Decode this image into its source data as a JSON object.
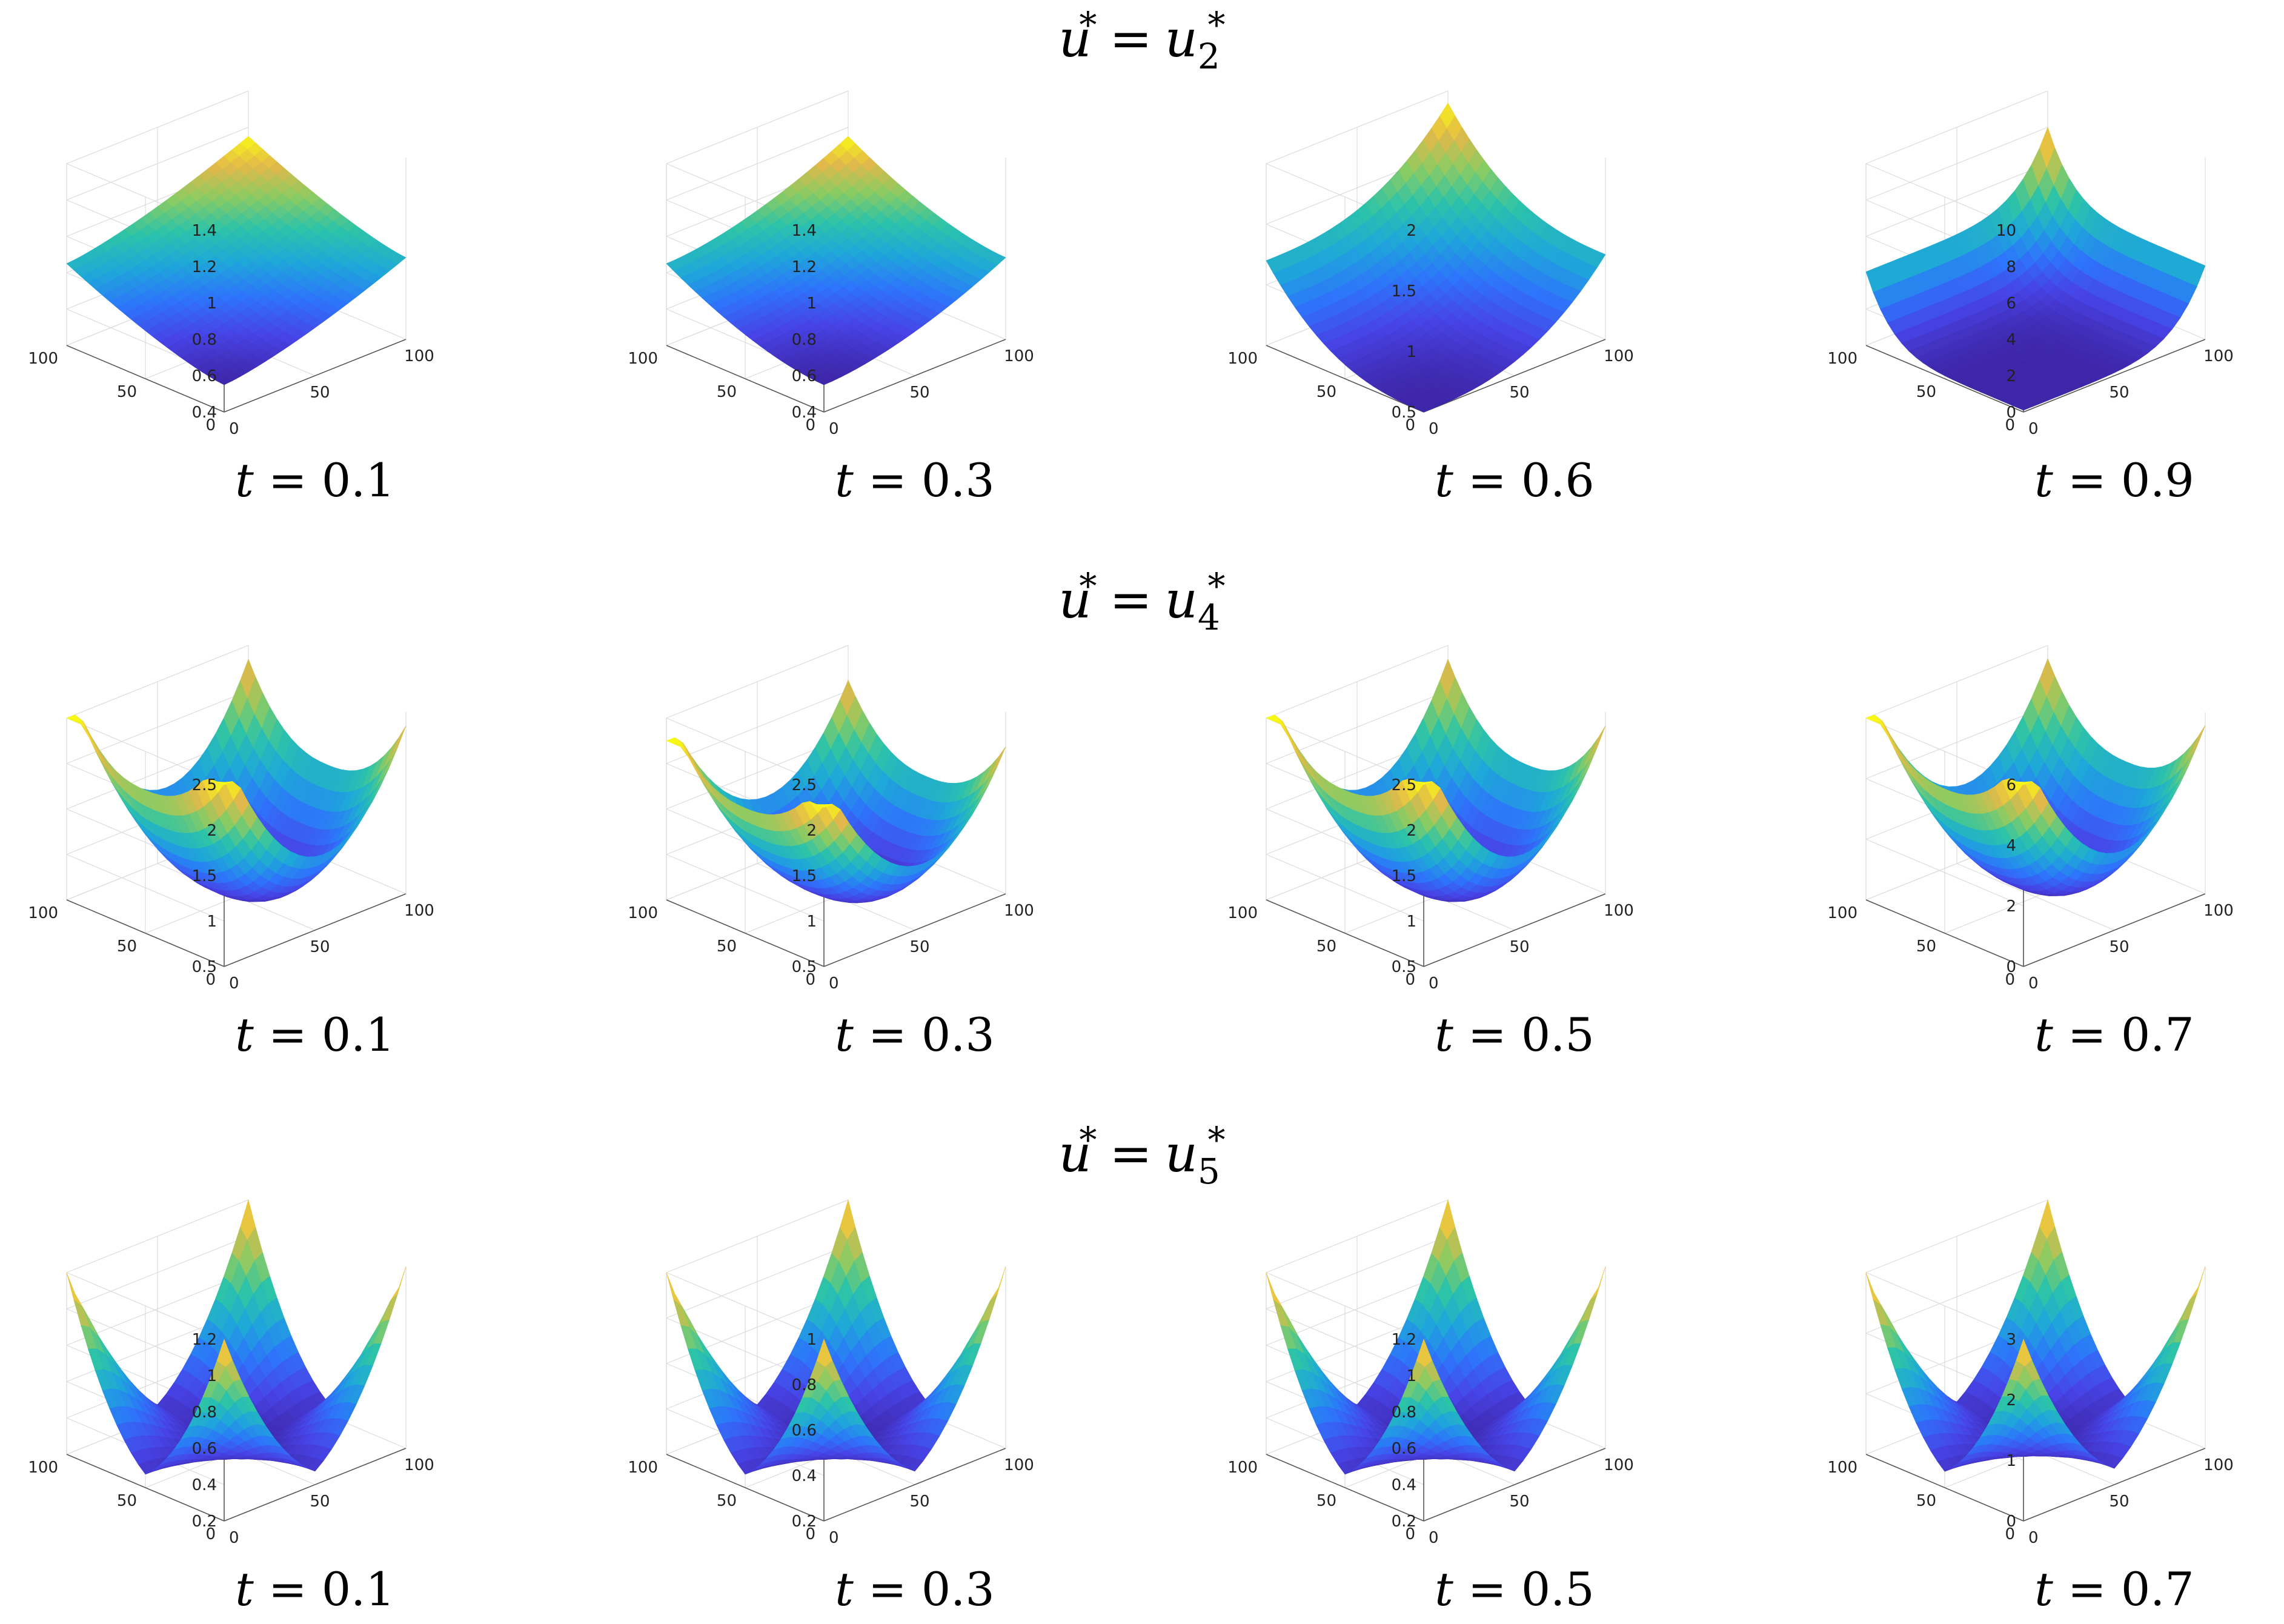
{
  "rows": [
    {
      "title_var": "u",
      "title_star": "*",
      "title_rhs": "u",
      "title_sub": "2",
      "title_sup": "*"
    },
    {
      "title_var": "u",
      "title_star": "*",
      "title_rhs": "u",
      "title_sub": "4",
      "title_sup": "*"
    },
    {
      "title_var": "u",
      "title_star": "*",
      "title_rhs": "u",
      "title_sub": "5",
      "title_sup": "*"
    }
  ],
  "chart_data": [
    {
      "type": "surface",
      "row": 0,
      "caption": "t = 0.1",
      "surface": "u2",
      "x": [
        0,
        100
      ],
      "y": [
        0,
        100
      ],
      "xticks": [
        "0",
        "50",
        "100"
      ],
      "yticks": [
        "0",
        "50",
        "100"
      ],
      "zlim": [
        0.4,
        1.4
      ],
      "zticks": [
        "0.4",
        "0.6",
        "0.8",
        "1",
        "1.2",
        "1.4"
      ],
      "zmin": 0.55,
      "zmax": 1.15
    },
    {
      "type": "surface",
      "row": 0,
      "caption": "t = 0.3",
      "surface": "u2",
      "x": [
        0,
        100
      ],
      "y": [
        0,
        100
      ],
      "xticks": [
        "0",
        "50",
        "100"
      ],
      "yticks": [
        "0",
        "50",
        "100"
      ],
      "zlim": [
        0.4,
        1.4
      ],
      "zticks": [
        "0.4",
        "0.6",
        "0.8",
        "1",
        "1.2",
        "1.4"
      ],
      "zmin": 0.55,
      "zmax": 1.15
    },
    {
      "type": "surface",
      "row": 0,
      "caption": "t = 0.6",
      "surface": "u2",
      "x": [
        0,
        100
      ],
      "y": [
        0,
        100
      ],
      "xticks": [
        "0",
        "50",
        "100"
      ],
      "yticks": [
        "0",
        "50",
        "100"
      ],
      "zlim": [
        0.5,
        2
      ],
      "zticks": [
        "0.5",
        "1",
        "1.5",
        "2"
      ],
      "zmin": 0.5,
      "zmax": 1.9
    },
    {
      "type": "surface",
      "row": 0,
      "caption": "t = 0.9",
      "surface": "u2",
      "x": [
        0,
        100
      ],
      "y": [
        0,
        100
      ],
      "xticks": [
        "0",
        "50",
        "100"
      ],
      "yticks": [
        "0",
        "50",
        "100"
      ],
      "zlim": [
        0,
        10
      ],
      "zticks": [
        "0",
        "2",
        "4",
        "6",
        "8",
        "10"
      ],
      "zmin": 0.1,
      "zmax": 8
    },
    {
      "type": "surface",
      "row": 1,
      "caption": "t = 0.1",
      "surface": "u4",
      "x": [
        0,
        100
      ],
      "y": [
        0,
        100
      ],
      "xticks": [
        "0",
        "50",
        "100"
      ],
      "yticks": [
        "0",
        "50",
        "100"
      ],
      "zlim": [
        0.5,
        2.5
      ],
      "zticks": [
        "0.5",
        "1",
        "1.5",
        "2",
        "2.5"
      ],
      "zmin": 0.5,
      "zmax": 2.5
    },
    {
      "type": "surface",
      "row": 1,
      "caption": "t = 0.3",
      "surface": "u4",
      "x": [
        0,
        100
      ],
      "y": [
        0,
        100
      ],
      "xticks": [
        "0",
        "50",
        "100"
      ],
      "yticks": [
        "0",
        "50",
        "100"
      ],
      "zlim": [
        0.5,
        2.5
      ],
      "zticks": [
        "0.5",
        "1",
        "1.5",
        "2",
        "2.5"
      ],
      "zmin": 0.5,
      "zmax": 2.25
    },
    {
      "type": "surface",
      "row": 1,
      "caption": "t = 0.5",
      "surface": "u4",
      "x": [
        0,
        100
      ],
      "y": [
        0,
        100
      ],
      "xticks": [
        "0",
        "50",
        "100"
      ],
      "yticks": [
        "0",
        "50",
        "100"
      ],
      "zlim": [
        0.5,
        2.5
      ],
      "zticks": [
        "0.5",
        "1",
        "1.5",
        "2",
        "2.5"
      ],
      "zmin": 0.5,
      "zmax": 2.5
    },
    {
      "type": "surface",
      "row": 1,
      "caption": "t = 0.7",
      "surface": "u4",
      "x": [
        0,
        100
      ],
      "y": [
        0,
        100
      ],
      "xticks": [
        "0",
        "50",
        "100"
      ],
      "yticks": [
        "0",
        "50",
        "100"
      ],
      "zlim": [
        0,
        6
      ],
      "zticks": [
        "0",
        "2",
        "4",
        "6"
      ],
      "zmin": 0.2,
      "zmax": 6
    },
    {
      "type": "surface",
      "row": 2,
      "caption": "t = 0.1",
      "surface": "u5",
      "x": [
        0,
        100
      ],
      "y": [
        0,
        100
      ],
      "xticks": [
        "0",
        "50",
        "100"
      ],
      "yticks": [
        "0",
        "50",
        "100"
      ],
      "zlim": [
        0.2,
        1.2
      ],
      "zticks": [
        "0.2",
        "0.4",
        "0.6",
        "0.8",
        "1",
        "1.2"
      ],
      "zmin": 0.2,
      "zmax": 1.2
    },
    {
      "type": "surface",
      "row": 2,
      "caption": "t = 0.3",
      "surface": "u5",
      "x": [
        0,
        100
      ],
      "y": [
        0,
        100
      ],
      "xticks": [
        "0",
        "50",
        "100"
      ],
      "yticks": [
        "0",
        "50",
        "100"
      ],
      "zlim": [
        0.2,
        1
      ],
      "zticks": [
        "0.2",
        "0.4",
        "0.6",
        "0.8",
        "1"
      ],
      "zmin": 0.2,
      "zmax": 1
    },
    {
      "type": "surface",
      "row": 2,
      "caption": "t = 0.5",
      "surface": "u5",
      "x": [
        0,
        100
      ],
      "y": [
        0,
        100
      ],
      "xticks": [
        "0",
        "50",
        "100"
      ],
      "yticks": [
        "0",
        "50",
        "100"
      ],
      "zlim": [
        0.2,
        1.2
      ],
      "zticks": [
        "0.2",
        "0.4",
        "0.6",
        "0.8",
        "1",
        "1.2"
      ],
      "zmin": 0.2,
      "zmax": 1.2
    },
    {
      "type": "surface",
      "row": 2,
      "caption": "t = 0.7",
      "surface": "u5",
      "x": [
        0,
        100
      ],
      "y": [
        0,
        100
      ],
      "xticks": [
        "0",
        "50",
        "100"
      ],
      "yticks": [
        "0",
        "50",
        "100"
      ],
      "zlim": [
        0,
        3
      ],
      "zticks": [
        "0",
        "1",
        "2",
        "3"
      ],
      "zmin": 0.05,
      "zmax": 3
    }
  ],
  "colormap": [
    "#3e26a8",
    "#4743e6",
    "#2d75fa",
    "#1ea7d9",
    "#2cc3a9",
    "#8bcb62",
    "#e3b84a",
    "#f9fb15"
  ]
}
